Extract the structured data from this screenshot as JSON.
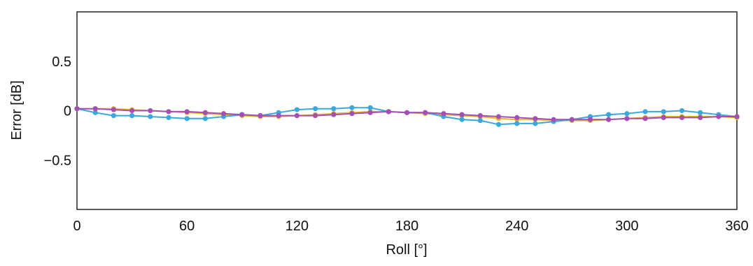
{
  "chart_data": {
    "type": "line",
    "title": "",
    "xlabel": "Roll [°]",
    "ylabel": "Error [dB]",
    "xlim": [
      0,
      360
    ],
    "ylim": [
      -1.0,
      1.0
    ],
    "xticks": [
      0,
      60,
      120,
      180,
      240,
      300,
      360
    ],
    "yticks": [
      0.5,
      0,
      -0.5
    ],
    "ytick_labels": [
      "0.5",
      "0",
      "−0.5"
    ],
    "grid": false,
    "legend": "none",
    "x": [
      0,
      10,
      20,
      30,
      40,
      50,
      60,
      70,
      80,
      90,
      100,
      110,
      120,
      130,
      140,
      150,
      160,
      170,
      180,
      190,
      200,
      210,
      220,
      230,
      240,
      250,
      260,
      270,
      280,
      290,
      300,
      310,
      320,
      330,
      340,
      350,
      360
    ],
    "series": [
      {
        "color": "#e8b923",
        "values": [
          0.02,
          0.02,
          0.02,
          0.01,
          0.0,
          -0.01,
          -0.02,
          -0.03,
          -0.04,
          -0.05,
          -0.06,
          -0.06,
          -0.05,
          -0.04,
          -0.03,
          -0.02,
          -0.01,
          -0.01,
          -0.02,
          -0.03,
          -0.04,
          -0.05,
          -0.06,
          -0.08,
          -0.09,
          -0.09,
          -0.1,
          -0.1,
          -0.1,
          -0.09,
          -0.08,
          -0.07,
          -0.06,
          -0.06,
          -0.06,
          -0.06,
          -0.07
        ]
      },
      {
        "color": "#3aa8dc",
        "values": [
          0.02,
          -0.02,
          -0.05,
          -0.05,
          -0.06,
          -0.07,
          -0.08,
          -0.08,
          -0.06,
          -0.04,
          -0.05,
          -0.02,
          0.01,
          0.02,
          0.02,
          0.03,
          0.03,
          -0.01,
          -0.02,
          -0.02,
          -0.06,
          -0.09,
          -0.1,
          -0.14,
          -0.13,
          -0.13,
          -0.11,
          -0.09,
          -0.06,
          -0.04,
          -0.03,
          -0.01,
          -0.01,
          0.0,
          -0.02,
          -0.04,
          -0.06
        ]
      },
      {
        "color": "#a54fb5",
        "values": [
          0.02,
          0.02,
          0.01,
          0.0,
          0.0,
          -0.01,
          -0.01,
          -0.02,
          -0.03,
          -0.04,
          -0.05,
          -0.05,
          -0.05,
          -0.05,
          -0.04,
          -0.03,
          -0.02,
          -0.01,
          -0.02,
          -0.02,
          -0.03,
          -0.04,
          -0.05,
          -0.06,
          -0.07,
          -0.08,
          -0.09,
          -0.09,
          -0.09,
          -0.09,
          -0.08,
          -0.08,
          -0.07,
          -0.07,
          -0.07,
          -0.06,
          -0.06
        ]
      }
    ]
  }
}
